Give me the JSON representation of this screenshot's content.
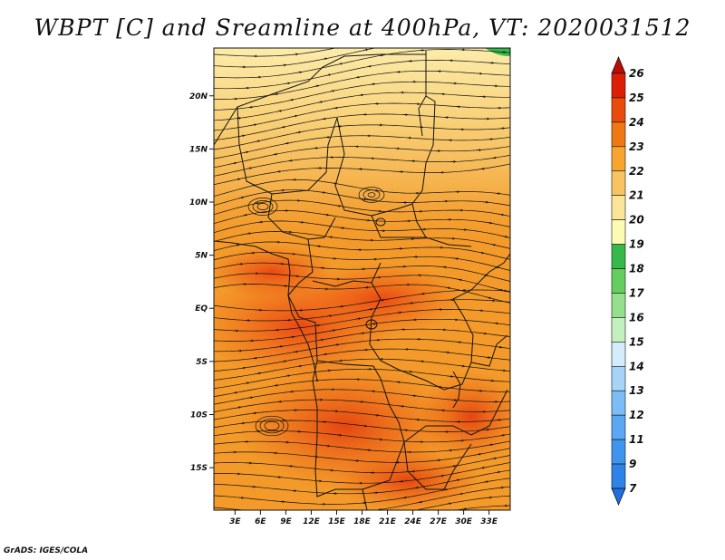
{
  "title": "WBPT [C] and Sreamline at 400hPa, VT: 2020031512",
  "footer": "GrADS: IGES/COLA",
  "map": {
    "variable": "WBPT [C]",
    "overlay": "Sreamline",
    "level": "400hPa",
    "valid_time": "2020031512",
    "lat_ticks": [
      "20N",
      "15N",
      "10N",
      "5N",
      "EQ",
      "5S",
      "10S",
      "15S"
    ],
    "lat_values": [
      20,
      15,
      10,
      5,
      0,
      -5,
      -10,
      -15
    ],
    "lon_ticks": [
      "3E",
      "6E",
      "9E",
      "12E",
      "15E",
      "18E",
      "21E",
      "24E",
      "27E",
      "30E",
      "33E"
    ],
    "lon_values": [
      3,
      6,
      9,
      12,
      15,
      18,
      21,
      24,
      27,
      30,
      33
    ],
    "lon_range": [
      0.5,
      35.5
    ],
    "lat_range": [
      -19,
      24.5
    ]
  },
  "colorbar": {
    "levels": [
      "7",
      "9",
      "11",
      "12",
      "13",
      "14",
      "15",
      "16",
      "17",
      "18",
      "19",
      "20",
      "21",
      "22",
      "23",
      "24",
      "25",
      "26"
    ],
    "colors": [
      "#1f6fe0",
      "#2e82e8",
      "#3f95ee",
      "#5aa8f2",
      "#7dbdf5",
      "#a6d4f8",
      "#d4ecfb",
      "#c4f0bf",
      "#95e08d",
      "#64cf5e",
      "#36b84a",
      "#fcfbb3",
      "#fbe596",
      "#f8c462",
      "#f5a530",
      "#f07814",
      "#ea4a0c",
      "#dc1e06",
      "#b90d04"
    ]
  },
  "colors": {
    "land_warm": "#f39a2a",
    "land_hot": "#ef5a12",
    "north_pale": "#fbde8c",
    "streamline": "#111111"
  }
}
